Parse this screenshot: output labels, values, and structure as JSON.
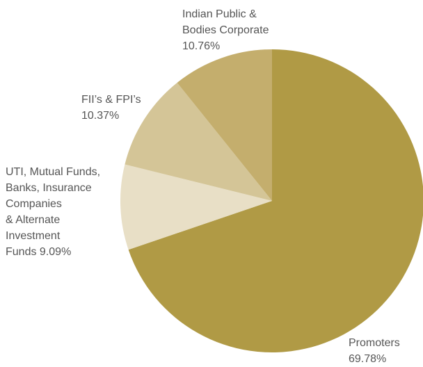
{
  "chart_data": {
    "type": "pie",
    "categories": [
      "Promoters",
      "UTI, Mutual Funds,\nBanks, Insurance\nCompanies\n& Alternate\nInvestment\nFunds",
      "FII’s & FPI’s",
      "Indian Public &\nBodies Corporate"
    ],
    "values": [
      69.78,
      9.09,
      10.37,
      10.76
    ],
    "value_labels": [
      "69.78%",
      "9.09%",
      "10.37%",
      "10.76%"
    ],
    "colors": [
      "#b09a45",
      "#e8dfc6",
      "#d4c597",
      "#c4ae6d"
    ]
  }
}
